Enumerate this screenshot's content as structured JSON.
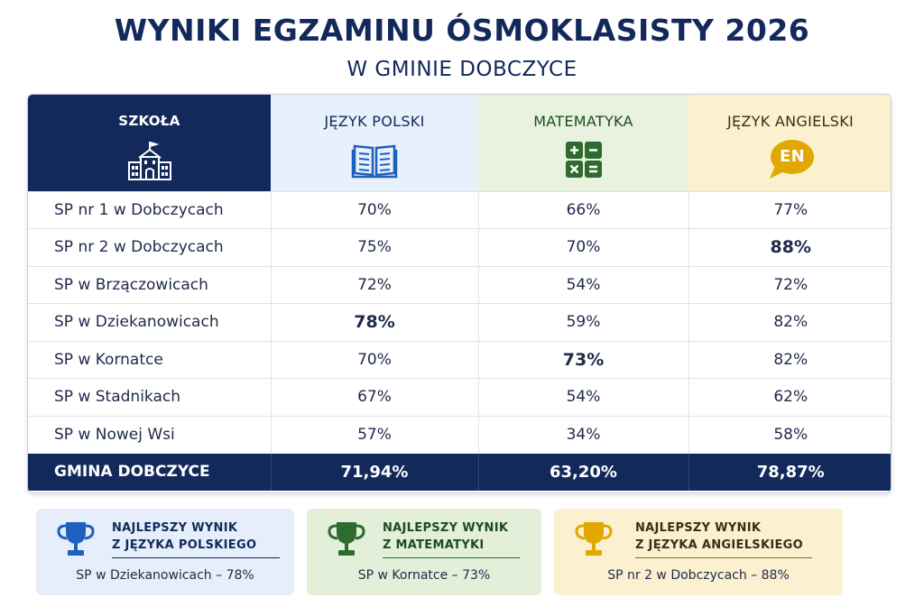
{
  "title": "WYNIKI EGZAMINU ÓSMOKLASISTY 2026",
  "subtitle": "W GMINIE DOBCZYCE",
  "table": {
    "headers": {
      "school": "SZKOŁA",
      "polish": "JĘZYK POLSKI",
      "math": "MATEMATYKA",
      "english": "JĘZYK ANGIELSKI",
      "english_badge": "EN"
    },
    "rows": [
      {
        "school": "SP nr 1 w Dobczycach",
        "polish": "70%",
        "math": "66%",
        "english": "77%"
      },
      {
        "school": "SP nr 2 w Dobczycach",
        "polish": "75%",
        "math": "70%",
        "english": "88%"
      },
      {
        "school": "SP w Brzączowicach",
        "polish": "72%",
        "math": "54%",
        "english": "72%"
      },
      {
        "school": "SP w Dziekanowicach",
        "polish": "78%",
        "math": "59%",
        "english": "82%"
      },
      {
        "school": "SP w Kornatce",
        "polish": "70%",
        "math": "73%",
        "english": "82%"
      },
      {
        "school": "SP w Stadnikach",
        "polish": "67%",
        "math": "54%",
        "english": "62%"
      },
      {
        "school": "SP w Nowej Wsi",
        "polish": "57%",
        "math": "34%",
        "english": "58%"
      }
    ],
    "total": {
      "school": "GMINA DOBCZYCE",
      "polish": "71,94%",
      "math": "63,20%",
      "english": "78,87%"
    }
  },
  "cards": {
    "polish": {
      "line1": "NAJLEPSZY WYNIK",
      "line2": "Z JĘZYKA POLSKIEGO",
      "result": "SP w Dziekanowicach – 78%"
    },
    "math": {
      "line1": "NAJLEPSZY WYNIK",
      "line2": "Z MATEMATYKI",
      "result": "SP w Kornatce – 73%"
    },
    "english": {
      "line1": "NAJLEPSZY WYNIK",
      "line2": "Z JĘZYKA ANGIELSKIEGO",
      "result": "SP nr 2 w Dobczycach – 88%"
    }
  },
  "colors": {
    "navy": "#13295b",
    "polish_bg": "#e7f0fb",
    "math_bg": "#e8f2df",
    "english_bg": "#fcf1cf",
    "polish_icon": "#1f5fbf",
    "math_icon": "#2f6b2f",
    "english_icon": "#e0a800"
  },
  "icons": {
    "school": "school-building-icon",
    "polish": "open-book-icon",
    "math": "calculator-symbols-icon",
    "english": "speech-bubble-icon",
    "trophy": "trophy-icon"
  }
}
